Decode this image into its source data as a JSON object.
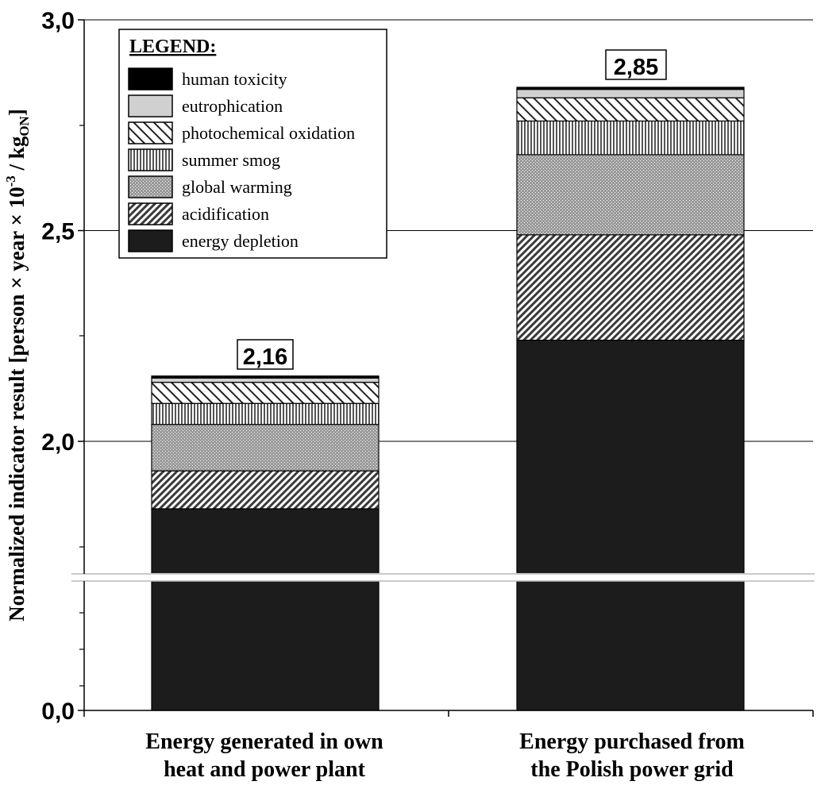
{
  "chart_data": {
    "type": "bar",
    "stacked": true,
    "broken_axis": true,
    "ylabel_main": "Normalized indicator result [person × year × 10",
    "ylabel_exp": "-3",
    "ylabel_mid": " / kg",
    "ylabel_sub": "ON",
    "ylabel_end": "]",
    "y_ticks": [
      {
        "value": 0.0,
        "label": "0,0"
      },
      {
        "value": 2.0,
        "label": "2,0"
      },
      {
        "value": 2.5,
        "label": "2,5"
      },
      {
        "value": 3.0,
        "label": "3,0"
      }
    ],
    "categories": [
      {
        "line1": "Energy generated in own",
        "line2": "heat and power plant"
      },
      {
        "line1": "Energy purchased from",
        "line2": "the Polish power grid"
      }
    ],
    "totals": [
      "2,16",
      "2,85"
    ],
    "series": [
      {
        "name": "energy depletion",
        "values": [
          1.84,
          2.24
        ]
      },
      {
        "name": "acidification",
        "values": [
          0.09,
          0.25
        ]
      },
      {
        "name": "global warming",
        "values": [
          0.11,
          0.19
        ]
      },
      {
        "name": "summer smog",
        "values": [
          0.05,
          0.08
        ]
      },
      {
        "name": "photochemical oxidation",
        "values": [
          0.05,
          0.055
        ]
      },
      {
        "name": "eutrophication",
        "values": [
          0.01,
          0.02
        ]
      },
      {
        "name": "human toxicity",
        "values": [
          0.005,
          0.005
        ]
      }
    ],
    "legend": {
      "title": "LEGEND:",
      "position": "top-left",
      "order": [
        "human toxicity",
        "eutrophication",
        "photochemical oxidation",
        "summer smog",
        "global warming",
        "acidification",
        "energy depletion"
      ]
    }
  }
}
